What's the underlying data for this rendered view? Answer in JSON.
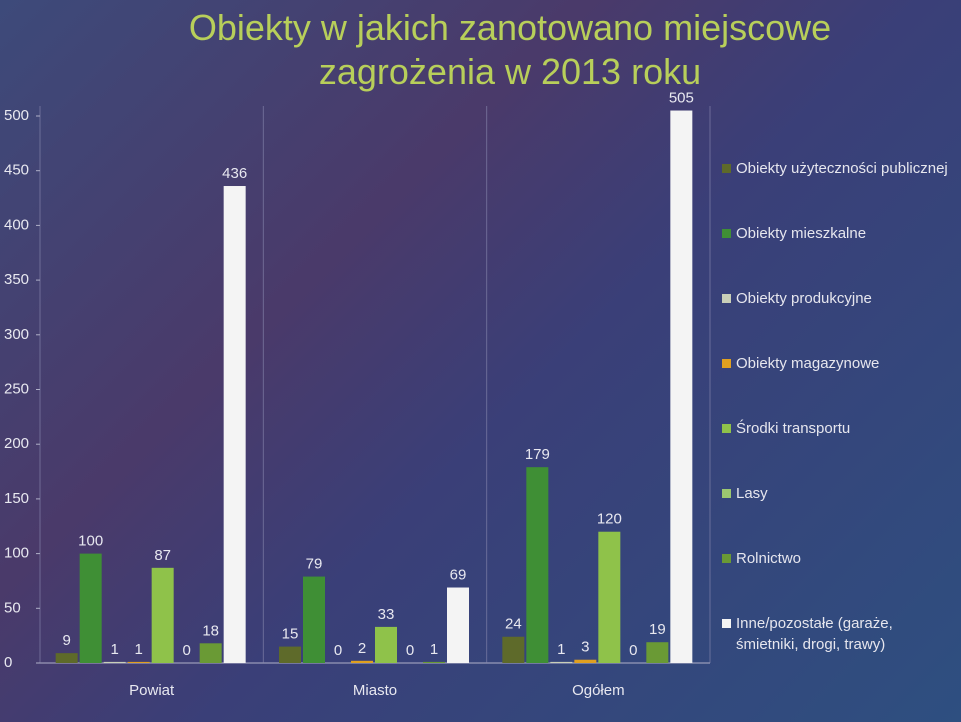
{
  "chart_data": {
    "type": "bar",
    "title": "Obiekty w jakich zanotowano miejscowe zagrożenia w 2013 roku",
    "categories": [
      "Powiat",
      "Miasto",
      "Ogółem"
    ],
    "series": [
      {
        "name": "Obiekty użyteczności publicznej",
        "color": "#5e6a2a",
        "values": [
          9,
          15,
          24
        ]
      },
      {
        "name": "Obiekty mieszkalne",
        "color": "#3f8f35",
        "values": [
          100,
          79,
          179
        ]
      },
      {
        "name": "Obiekty produkcyjne",
        "color": "#c9cfb8",
        "values": [
          1,
          0,
          1
        ]
      },
      {
        "name": "Obiekty magazynowe",
        "color": "#e0a020",
        "values": [
          1,
          2,
          3
        ]
      },
      {
        "name": "Środki transportu",
        "color": "#8fc24a",
        "values": [
          87,
          33,
          120
        ]
      },
      {
        "name": "Lasy",
        "color": "#9cc870",
        "values": [
          0,
          0,
          0
        ]
      },
      {
        "name": "Rolnictwo",
        "color": "#6a9a35",
        "values": [
          18,
          1,
          19
        ]
      },
      {
        "name": "Inne/pozostałe (garaże, śmietniki, drogi, trawy)",
        "color": "#f4f4f4",
        "values": [
          436,
          69,
          505
        ]
      }
    ],
    "ylim": [
      0,
      500
    ],
    "yticks": [
      0,
      50,
      100,
      150,
      200,
      250,
      300,
      350,
      400,
      450,
      500
    ],
    "grid": false
  }
}
